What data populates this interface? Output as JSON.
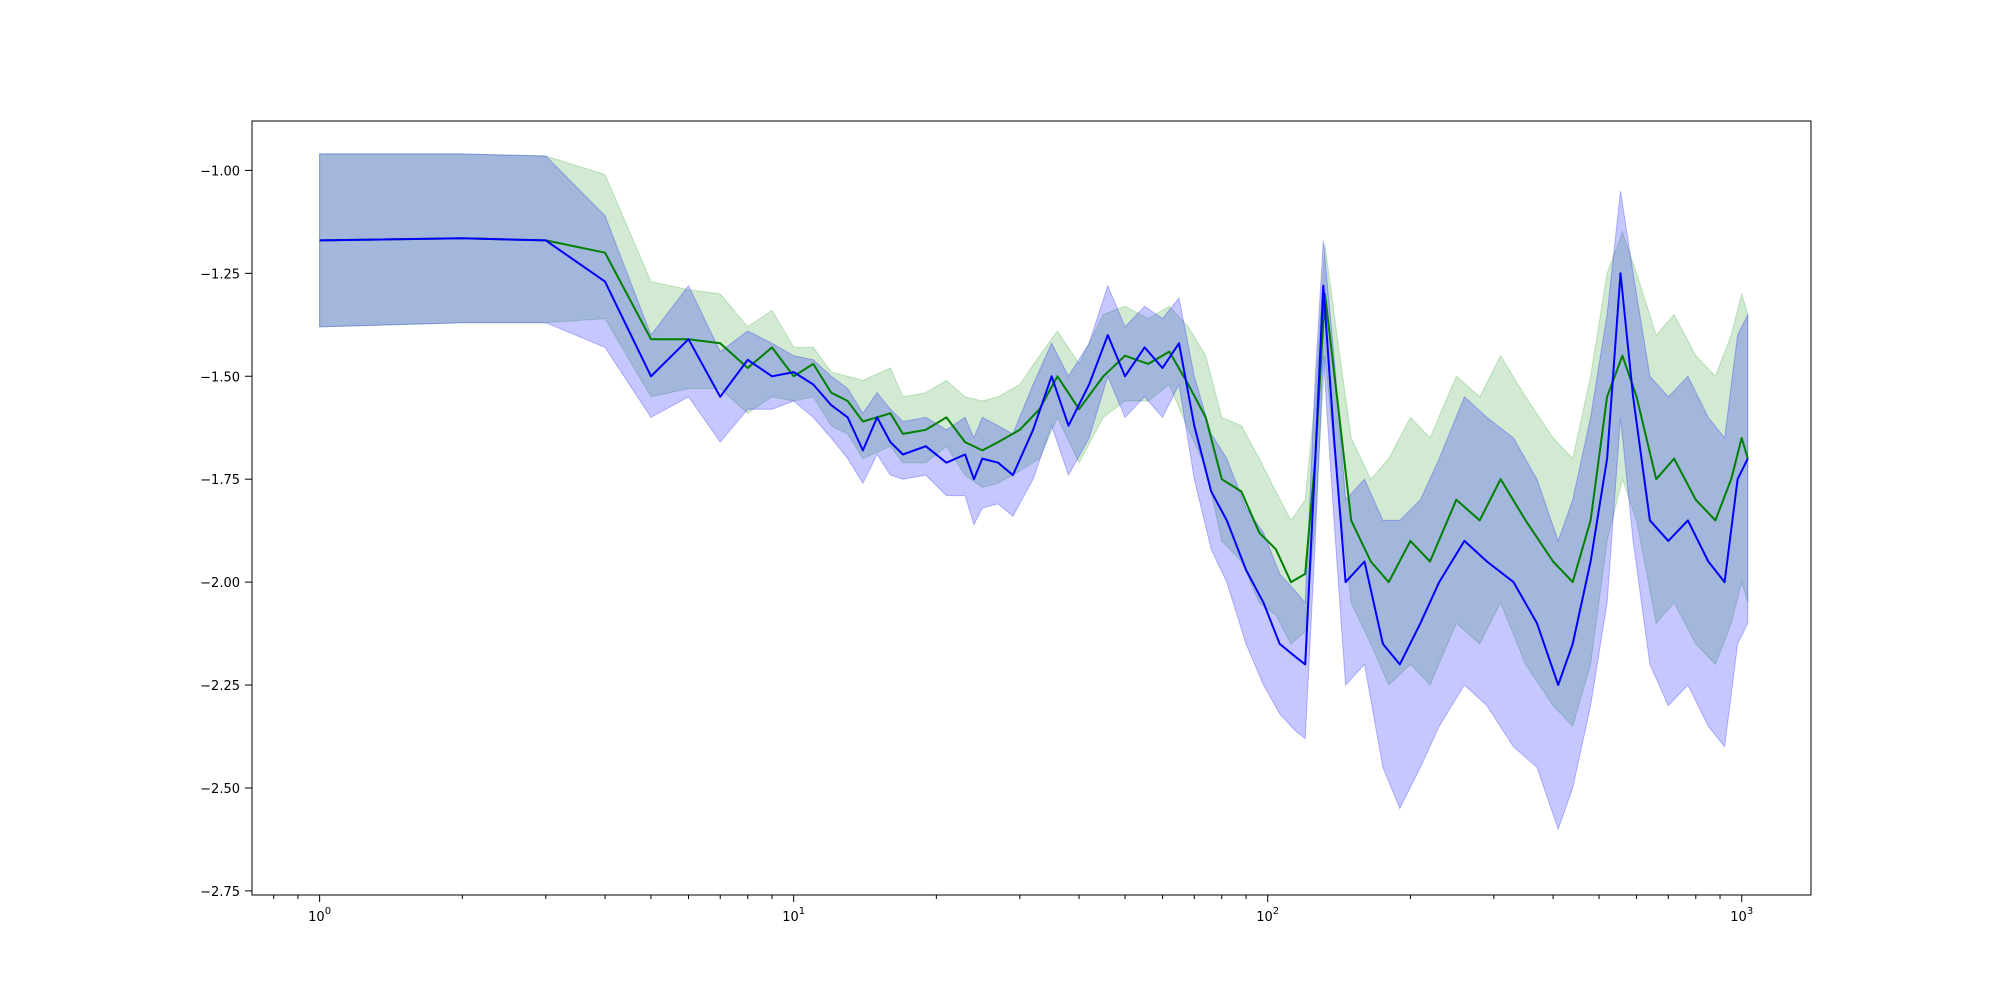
{
  "chart_data": {
    "type": "line",
    "title": "",
    "xlabel": "",
    "ylabel": "",
    "xscale": "log",
    "xlim": [
      0.72,
      1400
    ],
    "ylim": [
      -2.76,
      -0.88
    ],
    "grid": false,
    "legend": "none",
    "xticks": [
      {
        "value": 1,
        "base": "10",
        "exp": "0"
      },
      {
        "value": 10,
        "base": "10",
        "exp": "1"
      },
      {
        "value": 100,
        "base": "10",
        "exp": "2"
      },
      {
        "value": 1000,
        "base": "10",
        "exp": "3"
      }
    ],
    "yticks": [
      {
        "value": -1.0,
        "label": "−1.00"
      },
      {
        "value": -1.25,
        "label": "−1.25"
      },
      {
        "value": -1.5,
        "label": "−1.50"
      },
      {
        "value": -1.75,
        "label": "−1.75"
      },
      {
        "value": -2.0,
        "label": "−2.00"
      },
      {
        "value": -2.25,
        "label": "−2.25"
      },
      {
        "value": -2.5,
        "label": "−2.50"
      },
      {
        "value": -2.75,
        "label": "−2.75"
      }
    ],
    "series": [
      {
        "color": "#008000",
        "band_color": "#2ca02c",
        "points": [
          [
            1,
            -1.17,
            -1.38,
            -0.96
          ],
          [
            2,
            -1.165,
            -1.37,
            -0.96
          ],
          [
            3,
            -1.17,
            -1.37,
            -0.965
          ],
          [
            4,
            -1.2,
            -1.36,
            -1.01
          ],
          [
            5,
            -1.41,
            -1.55,
            -1.27
          ],
          [
            6,
            -1.41,
            -1.53,
            -1.29
          ],
          [
            7,
            -1.42,
            -1.53,
            -1.3
          ],
          [
            8,
            -1.48,
            -1.59,
            -1.38
          ],
          [
            9,
            -1.43,
            -1.55,
            -1.34
          ],
          [
            10,
            -1.5,
            -1.56,
            -1.43
          ],
          [
            11,
            -1.47,
            -1.55,
            -1.43
          ],
          [
            12,
            -1.54,
            -1.62,
            -1.49
          ],
          [
            13,
            -1.56,
            -1.64,
            -1.5
          ],
          [
            14,
            -1.61,
            -1.7,
            -1.51
          ],
          [
            16,
            -1.59,
            -1.67,
            -1.48
          ],
          [
            17,
            -1.64,
            -1.71,
            -1.55
          ],
          [
            19,
            -1.63,
            -1.71,
            -1.54
          ],
          [
            21,
            -1.6,
            -1.67,
            -1.51
          ],
          [
            23,
            -1.66,
            -1.74,
            -1.55
          ],
          [
            25,
            -1.68,
            -1.77,
            -1.56
          ],
          [
            27,
            -1.66,
            -1.76,
            -1.55
          ],
          [
            30,
            -1.63,
            -1.73,
            -1.52
          ],
          [
            33,
            -1.58,
            -1.7,
            -1.45
          ],
          [
            36,
            -1.5,
            -1.6,
            -1.39
          ],
          [
            40,
            -1.58,
            -1.71,
            -1.47
          ],
          [
            45,
            -1.5,
            -1.6,
            -1.35
          ],
          [
            50,
            -1.45,
            -1.56,
            -1.33
          ],
          [
            56,
            -1.47,
            -1.56,
            -1.36
          ],
          [
            62,
            -1.44,
            -1.52,
            -1.33
          ],
          [
            68,
            -1.52,
            -1.63,
            -1.38
          ],
          [
            74,
            -1.6,
            -1.72,
            -1.45
          ],
          [
            80,
            -1.75,
            -1.9,
            -1.6
          ],
          [
            88,
            -1.78,
            -1.95,
            -1.62
          ],
          [
            96,
            -1.88,
            -2.05,
            -1.7
          ],
          [
            104,
            -1.92,
            -2.08,
            -1.78
          ],
          [
            112,
            -2.0,
            -2.15,
            -1.85
          ],
          [
            120,
            -1.98,
            -2.12,
            -1.8
          ],
          [
            126,
            -1.7,
            -1.85,
            -1.55
          ],
          [
            132,
            -1.3,
            -1.45,
            -1.18
          ],
          [
            140,
            -1.55,
            -1.75,
            -1.4
          ],
          [
            150,
            -1.85,
            -2.05,
            -1.65
          ],
          [
            165,
            -1.95,
            -2.15,
            -1.75
          ],
          [
            180,
            -2.0,
            -2.25,
            -1.7
          ],
          [
            200,
            -1.9,
            -2.2,
            -1.6
          ],
          [
            220,
            -1.95,
            -2.25,
            -1.65
          ],
          [
            250,
            -1.8,
            -2.1,
            -1.5
          ],
          [
            280,
            -1.85,
            -2.15,
            -1.55
          ],
          [
            310,
            -1.75,
            -2.05,
            -1.45
          ],
          [
            350,
            -1.85,
            -2.2,
            -1.55
          ],
          [
            400,
            -1.95,
            -2.3,
            -1.65
          ],
          [
            440,
            -2.0,
            -2.35,
            -1.7
          ],
          [
            480,
            -1.85,
            -2.2,
            -1.5
          ],
          [
            520,
            -1.55,
            -1.9,
            -1.25
          ],
          [
            560,
            -1.45,
            -1.75,
            -1.15
          ],
          [
            600,
            -1.55,
            -1.85,
            -1.25
          ],
          [
            660,
            -1.75,
            -2.1,
            -1.4
          ],
          [
            720,
            -1.7,
            -2.05,
            -1.35
          ],
          [
            800,
            -1.8,
            -2.15,
            -1.45
          ],
          [
            880,
            -1.85,
            -2.2,
            -1.5
          ],
          [
            950,
            -1.75,
            -2.1,
            -1.4
          ],
          [
            1000,
            -1.65,
            -2.0,
            -1.3
          ],
          [
            1030,
            -1.7,
            -2.05,
            -1.35
          ]
        ]
      },
      {
        "color": "#0000ff",
        "band_color": "#0000ff",
        "points": [
          [
            1,
            -1.17,
            -1.38,
            -0.96
          ],
          [
            2,
            -1.165,
            -1.37,
            -0.96
          ],
          [
            3,
            -1.17,
            -1.37,
            -0.965
          ],
          [
            4,
            -1.27,
            -1.43,
            -1.11
          ],
          [
            5,
            -1.5,
            -1.6,
            -1.4
          ],
          [
            6,
            -1.41,
            -1.55,
            -1.28
          ],
          [
            7,
            -1.55,
            -1.66,
            -1.44
          ],
          [
            8,
            -1.46,
            -1.58,
            -1.39
          ],
          [
            9,
            -1.5,
            -1.58,
            -1.42
          ],
          [
            10,
            -1.49,
            -1.56,
            -1.45
          ],
          [
            11,
            -1.52,
            -1.6,
            -1.46
          ],
          [
            12,
            -1.57,
            -1.65,
            -1.5
          ],
          [
            13,
            -1.6,
            -1.7,
            -1.53
          ],
          [
            14,
            -1.68,
            -1.76,
            -1.59
          ],
          [
            15,
            -1.6,
            -1.69,
            -1.54
          ],
          [
            16,
            -1.66,
            -1.74,
            -1.58
          ],
          [
            17,
            -1.69,
            -1.75,
            -1.61
          ],
          [
            19,
            -1.67,
            -1.74,
            -1.6
          ],
          [
            21,
            -1.71,
            -1.79,
            -1.63
          ],
          [
            23,
            -1.69,
            -1.79,
            -1.6
          ],
          [
            24,
            -1.75,
            -1.86,
            -1.65
          ],
          [
            25,
            -1.7,
            -1.82,
            -1.6
          ],
          [
            27,
            -1.71,
            -1.81,
            -1.62
          ],
          [
            29,
            -1.74,
            -1.84,
            -1.64
          ],
          [
            32,
            -1.63,
            -1.75,
            -1.52
          ],
          [
            35,
            -1.5,
            -1.62,
            -1.42
          ],
          [
            38,
            -1.62,
            -1.74,
            -1.5
          ],
          [
            42,
            -1.52,
            -1.65,
            -1.42
          ],
          [
            46,
            -1.4,
            -1.5,
            -1.28
          ],
          [
            50,
            -1.5,
            -1.6,
            -1.38
          ],
          [
            55,
            -1.43,
            -1.55,
            -1.33
          ],
          [
            60,
            -1.48,
            -1.6,
            -1.36
          ],
          [
            65,
            -1.42,
            -1.52,
            -1.31
          ],
          [
            70,
            -1.62,
            -1.75,
            -1.5
          ],
          [
            76,
            -1.78,
            -1.92,
            -1.64
          ],
          [
            82,
            -1.85,
            -2.0,
            -1.7
          ],
          [
            90,
            -1.97,
            -2.15,
            -1.82
          ],
          [
            98,
            -2.05,
            -2.25,
            -1.88
          ],
          [
            106,
            -2.15,
            -2.32,
            -1.98
          ],
          [
            114,
            -2.18,
            -2.36,
            -2.02
          ],
          [
            120,
            -2.2,
            -2.38,
            -2.05
          ],
          [
            126,
            -1.7,
            -1.9,
            -1.5
          ],
          [
            131,
            -1.28,
            -1.45,
            -1.17
          ],
          [
            138,
            -1.65,
            -1.85,
            -1.45
          ],
          [
            146,
            -2.0,
            -2.25,
            -1.8
          ],
          [
            160,
            -1.95,
            -2.2,
            -1.75
          ],
          [
            175,
            -2.15,
            -2.45,
            -1.85
          ],
          [
            190,
            -2.2,
            -2.55,
            -1.85
          ],
          [
            210,
            -2.1,
            -2.45,
            -1.8
          ],
          [
            230,
            -2.0,
            -2.35,
            -1.7
          ],
          [
            260,
            -1.9,
            -2.25,
            -1.55
          ],
          [
            290,
            -1.95,
            -2.3,
            -1.6
          ],
          [
            330,
            -2.0,
            -2.4,
            -1.65
          ],
          [
            370,
            -2.1,
            -2.45,
            -1.75
          ],
          [
            410,
            -2.25,
            -2.6,
            -1.9
          ],
          [
            440,
            -2.15,
            -2.5,
            -1.8
          ],
          [
            480,
            -1.95,
            -2.3,
            -1.6
          ],
          [
            520,
            -1.7,
            -2.05,
            -1.35
          ],
          [
            555,
            -1.25,
            -1.6,
            -1.05
          ],
          [
            590,
            -1.55,
            -1.9,
            -1.25
          ],
          [
            640,
            -1.85,
            -2.2,
            -1.5
          ],
          [
            700,
            -1.9,
            -2.3,
            -1.55
          ],
          [
            770,
            -1.85,
            -2.25,
            -1.5
          ],
          [
            850,
            -1.95,
            -2.35,
            -1.6
          ],
          [
            920,
            -2.0,
            -2.4,
            -1.65
          ],
          [
            980,
            -1.75,
            -2.15,
            -1.4
          ],
          [
            1030,
            -1.7,
            -2.1,
            -1.35
          ]
        ]
      }
    ]
  }
}
